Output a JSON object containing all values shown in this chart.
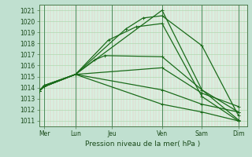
{
  "title": "",
  "xlabel": "Pression niveau de la mer( hPa )",
  "bg_color": "#c0e0d0",
  "plot_bg_color": "#d8f0e0",
  "grid_color_h": "#b0d8b0",
  "grid_color_v": "#f0b8b8",
  "line_color": "#1a6b1a",
  "dark_vline_color": "#4a8a5a",
  "spine_color": "#4a7a4a",
  "tick_color": "#1a4a1a",
  "xlim": [
    0,
    6.0
  ],
  "ylim": [
    1010.5,
    1021.5
  ],
  "yticks": [
    1011,
    1012,
    1013,
    1014,
    1015,
    1016,
    1017,
    1018,
    1019,
    1020,
    1021
  ],
  "xtick_labels": [
    "Mer",
    "Lun",
    "Jeu",
    "Ven",
    "Sam",
    "Dim"
  ],
  "xtick_positions": [
    0.15,
    1.05,
    2.1,
    3.55,
    4.7,
    5.75
  ],
  "dark_vline_positions": [
    0.15,
    1.05,
    2.1,
    3.55,
    4.7,
    5.75
  ],
  "n_vlines": 72,
  "lines_data": [
    {
      "x": [
        0.0,
        0.15,
        1.05,
        3.55,
        4.7,
        5.75
      ],
      "y": [
        1013.7,
        1014.1,
        1015.2,
        1021.0,
        1013.8,
        1011.1
      ]
    },
    {
      "x": [
        0.0,
        0.15,
        1.05,
        2.5,
        3.0,
        3.55,
        4.7,
        5.75
      ],
      "y": [
        1013.7,
        1014.2,
        1015.2,
        1019.3,
        1020.3,
        1020.5,
        1017.8,
        1011.5
      ]
    },
    {
      "x": [
        0.0,
        0.15,
        1.05,
        2.0,
        2.8,
        3.55,
        4.7,
        5.75
      ],
      "y": [
        1013.7,
        1014.2,
        1015.2,
        1018.3,
        1019.5,
        1019.8,
        1013.2,
        1011.0
      ]
    },
    {
      "x": [
        0.0,
        0.15,
        1.05,
        1.6,
        1.9,
        3.55,
        4.7,
        5.75
      ],
      "y": [
        1013.7,
        1014.2,
        1015.2,
        1016.5,
        1016.9,
        1016.8,
        1013.8,
        1011.8
      ]
    },
    {
      "x": [
        0.0,
        0.15,
        1.05,
        3.55,
        4.7,
        5.75
      ],
      "y": [
        1013.7,
        1014.1,
        1015.2,
        1015.8,
        1013.5,
        1012.3
      ]
    },
    {
      "x": [
        0.0,
        0.15,
        1.05,
        3.55,
        4.7,
        5.75
      ],
      "y": [
        1013.7,
        1014.1,
        1015.2,
        1013.8,
        1012.5,
        1011.8
      ]
    },
    {
      "x": [
        0.0,
        0.15,
        1.05,
        3.55,
        4.7,
        5.75
      ],
      "y": [
        1013.7,
        1014.1,
        1015.2,
        1012.5,
        1011.8,
        1011.0
      ]
    }
  ],
  "ylabel_fontsize": 5.5,
  "xlabel_fontsize": 6.5,
  "tick_fontsize": 5.5,
  "lw": 0.9,
  "marker": "+",
  "ms": 2.5,
  "mew": 0.7
}
